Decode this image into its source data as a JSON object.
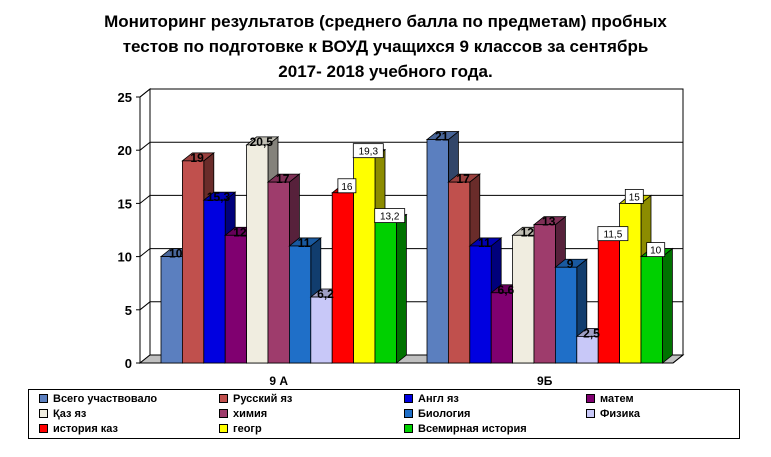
{
  "chart_data": {
    "type": "bar",
    "title_lines": [
      "Мониторинг результатов (среднего балла по предметам)  пробных",
      "тестов по подготовке к  ВОУД учащихся  9 классов  за  сентябрь",
      "2017- 2018 учебного года."
    ],
    "categories": [
      "9 А",
      "9Б"
    ],
    "ylim": [
      0,
      25
    ],
    "yticks": [
      "0",
      "5",
      "10",
      "15",
      "20",
      "25"
    ],
    "grid": true,
    "legend_position": "bottom",
    "series": [
      {
        "name": "Всего участвовало",
        "color": "#5B7FBF",
        "values": [
          10,
          21
        ],
        "labels": [
          "10",
          "21"
        ]
      },
      {
        "name": "Русский яз",
        "color": "#C0504D",
        "values": [
          19,
          17
        ],
        "labels": [
          "19",
          "17"
        ]
      },
      {
        "name": "Англ яз",
        "color": "#0000E0",
        "values": [
          15.3,
          11
        ],
        "labels": [
          "15,3",
          "11"
        ]
      },
      {
        "name": "матем",
        "color": "#800070",
        "values": [
          12,
          6.6
        ],
        "labels": [
          "12",
          "6,6"
        ]
      },
      {
        "name": "Қаз яз",
        "color": "#F0EDE0",
        "values": [
          20.5,
          12
        ],
        "labels": [
          "20,5",
          "12"
        ]
      },
      {
        "name": "химия",
        "color": "#9E3C6C",
        "values": [
          17,
          13
        ],
        "labels": [
          "17",
          "13"
        ]
      },
      {
        "name": "Биология",
        "color": "#1F6FC8",
        "values": [
          11,
          9
        ],
        "labels": [
          "11",
          "9"
        ]
      },
      {
        "name": "Физика",
        "color": "#C8C8F8",
        "values": [
          6.2,
          2.5
        ],
        "labels": [
          "6,2",
          "2,5"
        ]
      },
      {
        "name": "история каз",
        "color": "#FF0000",
        "values": [
          16,
          11.5
        ],
        "labels": [
          "16",
          "11,5"
        ]
      },
      {
        "name": "геогр",
        "color": "#FFFF00",
        "values": [
          19.3,
          15
        ],
        "labels": [
          "19,3",
          "15"
        ]
      },
      {
        "name": "Всемирная история",
        "color": "#00D000",
        "values": [
          13.2,
          10
        ],
        "labels": [
          "13,2",
          "10"
        ]
      }
    ],
    "boxed_labels": [
      false,
      false,
      false,
      false,
      false,
      false,
      false,
      false,
      true,
      true,
      true
    ]
  }
}
